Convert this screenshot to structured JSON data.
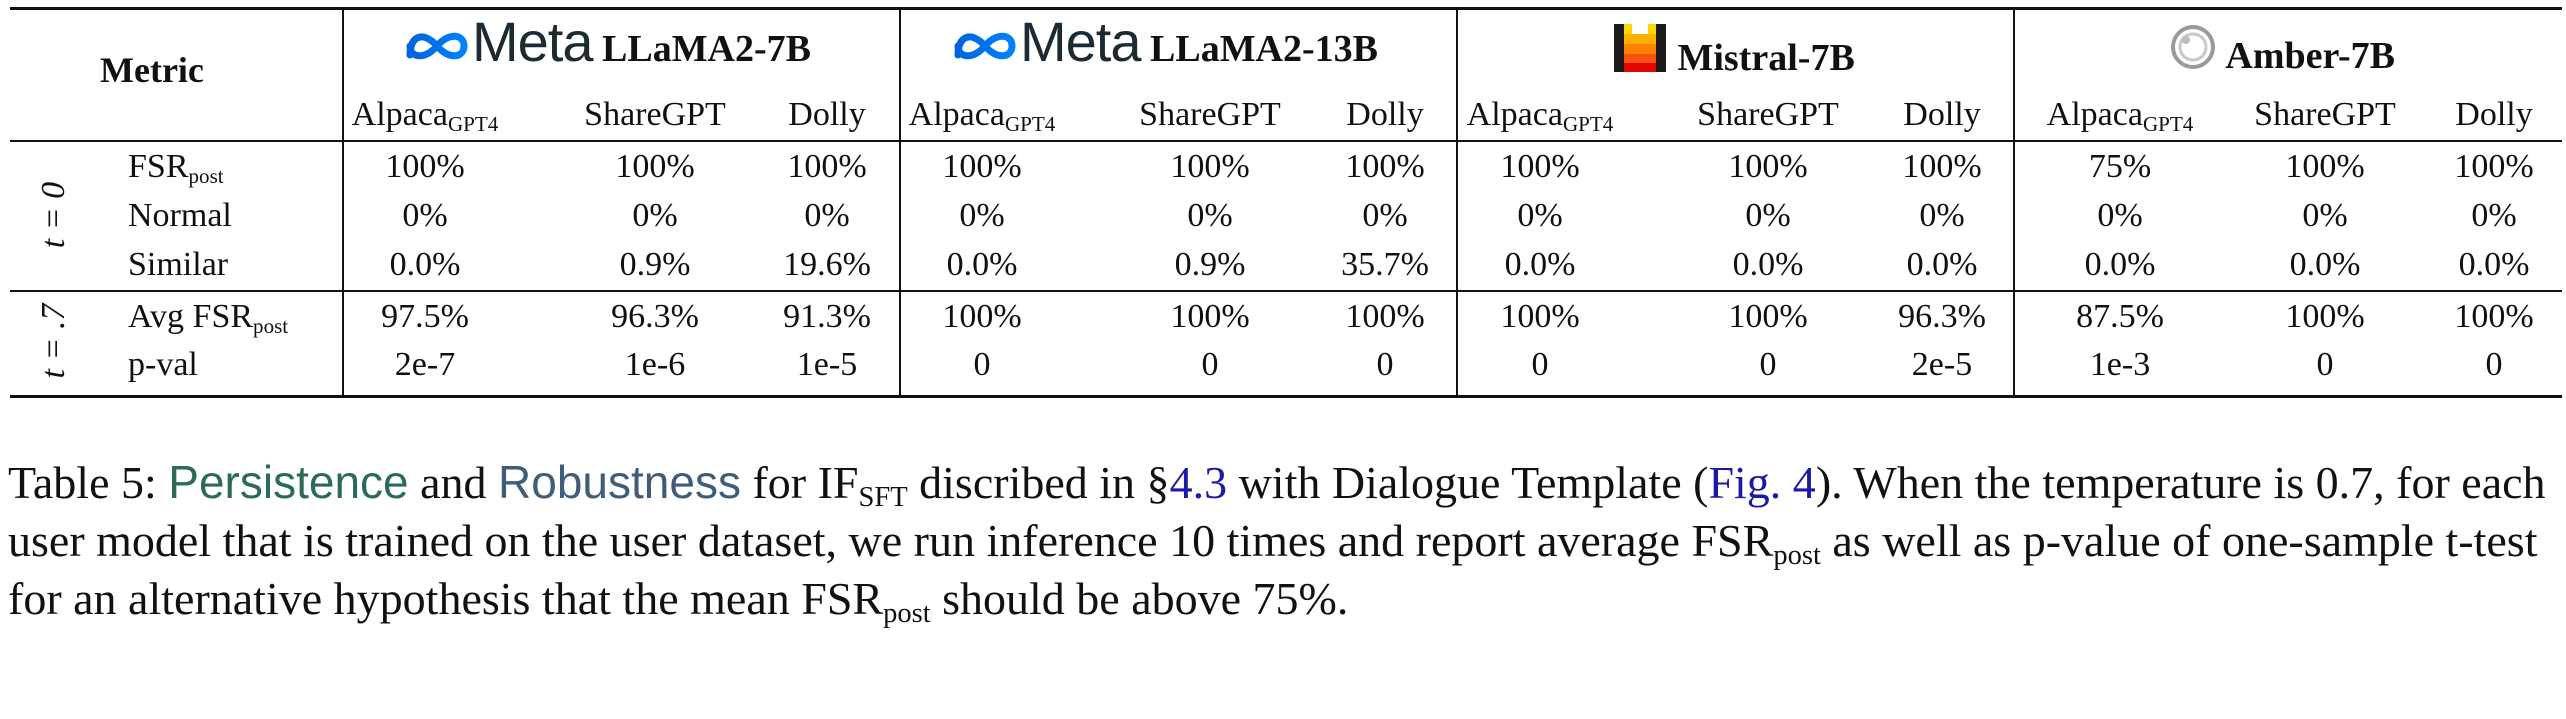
{
  "table": {
    "metric_header": "Metric",
    "models": [
      {
        "brand": "Meta",
        "name": "LLaMA2-7B",
        "logo": "meta-infinity-icon"
      },
      {
        "brand": "Meta",
        "name": "LLaMA2-13B",
        "logo": "meta-infinity-icon"
      },
      {
        "brand": "",
        "name": "Mistral-7B",
        "logo": "mistral-m-icon"
      },
      {
        "brand": "",
        "name": "Amber-7B",
        "logo": "amber-ring-icon"
      }
    ],
    "datasets": {
      "alpaca": "Alpaca",
      "alpaca_sub": "GPT4",
      "sharegpt": "ShareGPT",
      "dolly": "Dolly"
    },
    "groups": {
      "t0": "t = 0",
      "t7": "t = .7"
    },
    "rows": [
      {
        "label": "FSR",
        "label_sub": "post",
        "values": [
          "100%",
          "100%",
          "100%",
          "100%",
          "100%",
          "100%",
          "100%",
          "100%",
          "100%",
          "75%",
          "100%",
          "100%"
        ]
      },
      {
        "label": "Normal",
        "label_sub": "",
        "values": [
          "0%",
          "0%",
          "0%",
          "0%",
          "0%",
          "0%",
          "0%",
          "0%",
          "0%",
          "0%",
          "0%",
          "0%"
        ]
      },
      {
        "label": "Similar",
        "label_sub": "",
        "values": [
          "0.0%",
          "0.9%",
          "19.6%",
          "0.0%",
          "0.9%",
          "35.7%",
          "0.0%",
          "0.0%",
          "0.0%",
          "0.0%",
          "0.0%",
          "0.0%"
        ]
      },
      {
        "label": "Avg FSR",
        "label_sub": "post",
        "values": [
          "97.5%",
          "96.3%",
          "91.3%",
          "100%",
          "100%",
          "100%",
          "100%",
          "100%",
          "96.3%",
          "87.5%",
          "100%",
          "100%"
        ]
      },
      {
        "label": "p-val",
        "label_sub": "",
        "values": [
          "2e-7",
          "1e-6",
          "1e-5",
          "0",
          "0",
          "0",
          "0",
          "0",
          "2e-5",
          "1e-3",
          "0",
          "0"
        ]
      }
    ]
  },
  "caption": {
    "prefix": "Table 5: ",
    "persistence": "Persistence",
    "and": " and ",
    "robustness": "Robustness",
    "for": " for IF",
    "for_sub": "SFT",
    "described": " discribed in §",
    "section_ref": "4.3",
    "with": " with Dialogue Template (",
    "fig_ref": "Fig. 4",
    "after_fig": ").  When the temperature is 0.7, for each user model that is trained on the user dataset, we run inference 10 times and report average FSR",
    "fsr_sub_1": "post",
    "middle": " as well as p-value of one-sample t-test for an alternative hypothesis that the mean FSR",
    "fsr_sub_2": "post",
    "end": " should be above 75%."
  }
}
